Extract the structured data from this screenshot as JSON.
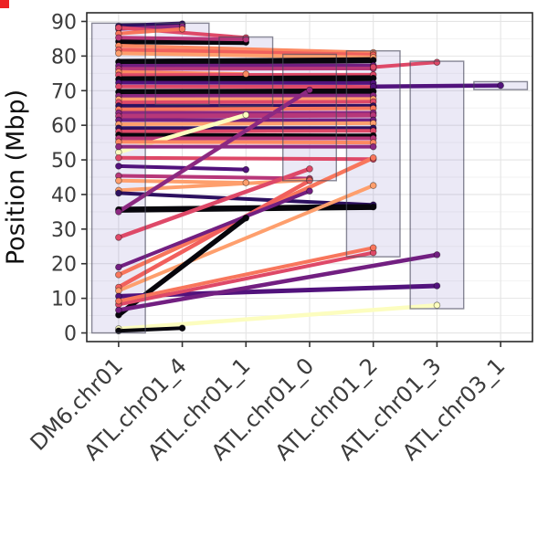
{
  "chart_data": {
    "type": "line",
    "title": "",
    "xlabel": "",
    "ylabel": "Position (Mbp)",
    "ylim": [
      0,
      90
    ],
    "y_ticks": [
      0,
      10,
      20,
      30,
      40,
      50,
      60,
      70,
      80,
      90
    ],
    "grid": "on",
    "legend": "none",
    "categories": [
      "DM6.chr01",
      "ATL.chr01_4",
      "ATL.chr01_1",
      "ATL.chr01_0",
      "ATL.chr01_2",
      "ATL.chr01_3",
      "ATL.chr03_1"
    ],
    "style": {
      "panel_bg": "#ffffff",
      "grid_major": "#e4e4e4",
      "grid_minor": "#f1f1f1",
      "panel_border": "#2a2a2a",
      "tick_color": "#333333",
      "tick_label_color": "#3c3c3c",
      "axis_title_color": "#111111",
      "box_fill": "rgba(130,120,200,0.16)",
      "box_stroke": "rgba(75,75,95,0.65)",
      "dot_stroke": "rgba(0,0,0,0.45)",
      "corner_artifact": "#ed2224"
    },
    "boxes": [
      {
        "x": 0,
        "ymin": 0,
        "ymax": 89.5
      },
      {
        "x": 1,
        "ymin": 66,
        "ymax": 89.5
      },
      {
        "x": 2,
        "ymin": 65.5,
        "ymax": 85.5
      },
      {
        "x": 3,
        "ymin": 44,
        "ymax": 80.5
      },
      {
        "x": 4,
        "ymin": 22,
        "ymax": 81.5
      },
      {
        "x": 5,
        "ymin": 7,
        "ymax": 78.5
      },
      {
        "x": 6,
        "ymin": 70.3,
        "ymax": 72.6
      }
    ],
    "segments": [
      {
        "color": "#2d1160",
        "width": 5,
        "points": [
          [
            0,
            88.7
          ],
          [
            1,
            89.3
          ]
        ]
      },
      {
        "color": "#8c2981",
        "width": 4,
        "points": [
          [
            0,
            87.8
          ],
          [
            1,
            88.6
          ]
        ]
      },
      {
        "color": "#de4968",
        "width": 4,
        "points": [
          [
            0,
            88.2
          ],
          [
            2,
            85.3
          ]
        ]
      },
      {
        "color": "#f8765c",
        "width": 4,
        "points": [
          [
            0,
            86.5
          ],
          [
            1,
            87.8
          ]
        ]
      },
      {
        "color": "#07060c",
        "width": 6,
        "points": [
          [
            0,
            84.2
          ],
          [
            2,
            84.0
          ]
        ]
      },
      {
        "color": "#b73779",
        "width": 4,
        "points": [
          [
            0,
            85.3
          ],
          [
            2,
            84.8
          ]
        ]
      },
      {
        "color": "#fc8961",
        "width": 4,
        "points": [
          [
            0,
            83.0
          ],
          [
            4,
            81.0
          ]
        ]
      },
      {
        "color": "#f1605d",
        "width": 4.5,
        "points": [
          [
            0,
            81.8
          ],
          [
            4,
            80.3
          ]
        ]
      },
      {
        "color": "#fe9f6d",
        "width": 4,
        "points": [
          [
            0,
            80.8
          ],
          [
            4,
            79.6
          ]
        ]
      },
      {
        "color": "#07060c",
        "width": 6.5,
        "points": [
          [
            0,
            78.3
          ],
          [
            4,
            78.8
          ]
        ]
      },
      {
        "color": "#721f81",
        "width": 4,
        "points": [
          [
            0,
            77.2
          ],
          [
            4,
            77.3
          ]
        ]
      },
      {
        "color": "#b73779",
        "width": 4,
        "points": [
          [
            0,
            76.3
          ],
          [
            4,
            76.4
          ]
        ]
      },
      {
        "color": "#fc8961",
        "width": 4,
        "points": [
          [
            0,
            75.4
          ],
          [
            2,
            74.8
          ]
        ]
      },
      {
        "color": "#de4968",
        "width": 4,
        "points": [
          [
            0,
            74.5
          ],
          [
            4,
            74.6
          ]
        ]
      },
      {
        "color": "#07060c",
        "width": 6.5,
        "points": [
          [
            0,
            73.3
          ],
          [
            4,
            73.6
          ]
        ]
      },
      {
        "color": "#51127c",
        "width": 4,
        "points": [
          [
            0,
            72.3
          ],
          [
            4,
            72.2
          ]
        ]
      },
      {
        "color": "#de4968",
        "width": 4,
        "points": [
          [
            0,
            71.2
          ],
          [
            4,
            71.1
          ]
        ]
      },
      {
        "color": "#51127c",
        "width": 4.5,
        "points": [
          [
            4,
            71.2
          ],
          [
            6,
            71.5
          ]
        ]
      },
      {
        "color": "#07060c",
        "width": 6.5,
        "points": [
          [
            0,
            69.6
          ],
          [
            4,
            69.8
          ]
        ]
      },
      {
        "color": "#8c2981",
        "width": 4,
        "points": [
          [
            0,
            68.5
          ],
          [
            4,
            68.6
          ]
        ]
      },
      {
        "color": "#fe9f6d",
        "width": 4,
        "points": [
          [
            0,
            67.5
          ],
          [
            4,
            67.6
          ]
        ]
      },
      {
        "color": "#de4968",
        "width": 4,
        "points": [
          [
            0,
            66.6
          ],
          [
            4,
            66.8
          ]
        ]
      },
      {
        "color": "#2d1160",
        "width": 4,
        "points": [
          [
            0,
            65.6
          ],
          [
            4,
            65.6
          ]
        ]
      },
      {
        "color": "#f8765c",
        "width": 4,
        "points": [
          [
            0,
            64.6
          ],
          [
            4,
            64.9
          ]
        ]
      },
      {
        "color": "#8c2981",
        "width": 4,
        "points": [
          [
            0,
            63.6
          ],
          [
            4,
            63.6
          ]
        ]
      },
      {
        "color": "#b73779",
        "width": 5,
        "points": [
          [
            0,
            62.6
          ],
          [
            4,
            62.9
          ]
        ]
      },
      {
        "color": "#721f81",
        "width": 4,
        "points": [
          [
            0,
            61.5
          ],
          [
            4,
            61.5
          ]
        ]
      },
      {
        "color": "#fe9f6d",
        "width": 4,
        "points": [
          [
            0,
            60.3
          ],
          [
            4,
            60.6
          ]
        ]
      },
      {
        "color": "#2d1160",
        "width": 4,
        "points": [
          [
            0,
            59.2
          ],
          [
            4,
            59.2
          ]
        ]
      },
      {
        "color": "#de4968",
        "width": 4,
        "points": [
          [
            0,
            58.2
          ],
          [
            4,
            58.4
          ]
        ]
      },
      {
        "color": "#07060c",
        "width": 4.5,
        "points": [
          [
            0,
            57.2
          ],
          [
            4,
            57.0
          ]
        ]
      },
      {
        "color": "#b73779",
        "width": 4,
        "points": [
          [
            0,
            56.2
          ],
          [
            4,
            56.2
          ]
        ]
      },
      {
        "color": "#fcfdbf",
        "width": 4.5,
        "points": [
          [
            0,
            52.2
          ],
          [
            2,
            63.0
          ]
        ]
      },
      {
        "color": "#fc8961",
        "width": 4,
        "points": [
          [
            0,
            55.2
          ],
          [
            4,
            55.0
          ]
        ]
      },
      {
        "color": "#8c2981",
        "width": 4,
        "points": [
          [
            0,
            53.8
          ],
          [
            4,
            53.8
          ]
        ]
      },
      {
        "color": "#de4968",
        "width": 4,
        "points": [
          [
            0,
            50.6
          ],
          [
            4,
            50.2
          ]
        ]
      },
      {
        "color": "#51127c",
        "width": 4,
        "points": [
          [
            0,
            48.2
          ],
          [
            2,
            47.2
          ]
        ]
      },
      {
        "color": "#b73779",
        "width": 4,
        "points": [
          [
            0,
            45.4
          ],
          [
            3,
            44.6
          ]
        ]
      },
      {
        "color": "#fe9f6d",
        "width": 4,
        "points": [
          [
            0,
            41.2
          ],
          [
            3,
            44.2
          ]
        ]
      },
      {
        "color": "#fe9f6d",
        "width": 4,
        "points": [
          [
            0,
            44.0
          ],
          [
            2,
            43.4
          ]
        ]
      },
      {
        "color": "#2d1160",
        "width": 4,
        "points": [
          [
            0,
            40.4
          ],
          [
            4,
            37.0
          ]
        ]
      },
      {
        "color": "#07060c",
        "width": 6.5,
        "points": [
          [
            0,
            35.6
          ],
          [
            4,
            36.4
          ]
        ]
      },
      {
        "color": "#8c2981",
        "width": 4.5,
        "points": [
          [
            0,
            35.0
          ],
          [
            3,
            70.2
          ]
        ]
      },
      {
        "color": "#de4968",
        "width": 4.5,
        "points": [
          [
            0,
            27.6
          ],
          [
            3,
            47.4
          ]
        ]
      },
      {
        "color": "#f8765c",
        "width": 4.5,
        "points": [
          [
            0,
            16.8
          ],
          [
            4,
            50.6
          ]
        ]
      },
      {
        "color": "#f1605d",
        "width": 4.5,
        "points": [
          [
            0,
            13.2
          ],
          [
            3,
            44.0
          ]
        ]
      },
      {
        "color": "#fe9f6d",
        "width": 4,
        "points": [
          [
            0,
            12.2
          ],
          [
            4,
            42.6
          ]
        ]
      },
      {
        "color": "#721f81",
        "width": 4,
        "points": [
          [
            0,
            19.0
          ],
          [
            3,
            41.0
          ]
        ]
      },
      {
        "color": "#07060c",
        "width": 5.5,
        "points": [
          [
            0,
            5.2
          ],
          [
            2,
            33.2
          ]
        ]
      },
      {
        "color": "#51127c",
        "width": 5,
        "points": [
          [
            0,
            10.6
          ],
          [
            5,
            13.6
          ]
        ]
      },
      {
        "color": "#de4968",
        "width": 4,
        "points": [
          [
            0,
            8.2
          ],
          [
            4,
            23.2
          ]
        ]
      },
      {
        "color": "#f8765c",
        "width": 4,
        "points": [
          [
            0,
            9.2
          ],
          [
            4,
            24.6
          ]
        ]
      },
      {
        "color": "#721f81",
        "width": 4.5,
        "points": [
          [
            0,
            6.6
          ],
          [
            5,
            22.6
          ]
        ]
      },
      {
        "color": "#fcfdbf",
        "width": 4.5,
        "points": [
          [
            0,
            1.2
          ],
          [
            5,
            8.0
          ]
        ]
      },
      {
        "color": "#de4968",
        "width": 4,
        "points": [
          [
            4,
            76.8
          ],
          [
            5,
            78.2
          ]
        ]
      },
      {
        "color": "#07060c",
        "width": 4,
        "points": [
          [
            0,
            0.6
          ],
          [
            1,
            1.4
          ]
        ]
      }
    ]
  }
}
